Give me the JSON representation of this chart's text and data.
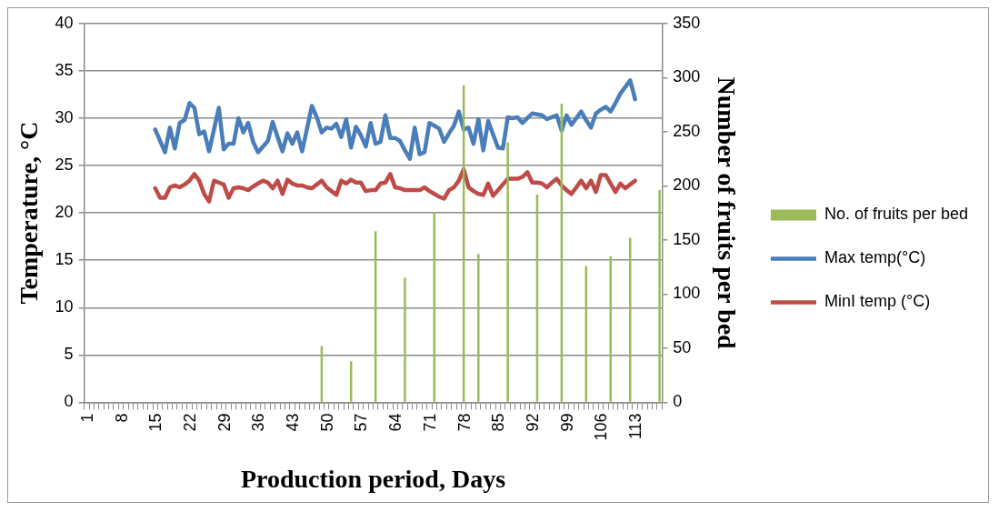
{
  "chart_data": {
    "type": "line",
    "xlabel": "Production period, Days",
    "ylabel": "Temperature, °C",
    "y2label": "Number of fruits per bed",
    "categories": [
      "1",
      null,
      null,
      null,
      null,
      null,
      null,
      "8",
      null,
      null,
      null,
      null,
      null,
      null,
      "15",
      null,
      null,
      null,
      null,
      null,
      null,
      "22",
      null,
      null,
      null,
      null,
      null,
      null,
      "29",
      null,
      null,
      null,
      null,
      null,
      null,
      "36",
      null,
      null,
      null,
      null,
      null,
      null,
      "43",
      null,
      null,
      null,
      null,
      null,
      null,
      "50",
      null,
      null,
      null,
      null,
      null,
      null,
      "57",
      null,
      null,
      null,
      null,
      null,
      null,
      "64",
      null,
      null,
      null,
      null,
      null,
      null,
      "71",
      null,
      null,
      null,
      null,
      null,
      null,
      "78",
      null,
      null,
      null,
      null,
      null,
      null,
      "85",
      null,
      null,
      null,
      null,
      null,
      null,
      "92",
      null,
      null,
      null,
      null,
      null,
      null,
      "99",
      null,
      null,
      null,
      null,
      null,
      null,
      "106",
      null,
      null,
      null,
      null,
      null,
      null,
      "113",
      null,
      null,
      null,
      null,
      null
    ],
    "series": [
      {
        "name": "No. of fruits per bed",
        "type": "bar",
        "axis": "y2",
        "color": "#9bbb59",
        "values": [
          null,
          null,
          null,
          null,
          null,
          null,
          null,
          null,
          null,
          null,
          null,
          null,
          null,
          null,
          null,
          null,
          null,
          null,
          null,
          null,
          null,
          null,
          null,
          null,
          null,
          null,
          null,
          null,
          null,
          null,
          null,
          null,
          null,
          null,
          null,
          null,
          null,
          null,
          null,
          null,
          null,
          null,
          null,
          null,
          null,
          null,
          null,
          null,
          52,
          null,
          null,
          null,
          null,
          null,
          38,
          null,
          null,
          null,
          null,
          158,
          null,
          null,
          null,
          null,
          null,
          115,
          null,
          null,
          null,
          null,
          null,
          176,
          null,
          null,
          null,
          null,
          null,
          293,
          null,
          null,
          137,
          null,
          null,
          null,
          null,
          null,
          240,
          null,
          null,
          null,
          null,
          null,
          192,
          null,
          null,
          null,
          null,
          276,
          null,
          null,
          null,
          null,
          126,
          null,
          null,
          null,
          null,
          135,
          null,
          null,
          null,
          152,
          null,
          null,
          null,
          null,
          null,
          196
        ]
      },
      {
        "name": "Max temp(°C)",
        "color": "#4a7ebb",
        "values": [
          null,
          null,
          null,
          null,
          null,
          null,
          null,
          null,
          null,
          null,
          null,
          null,
          null,
          null,
          28.8,
          27.6,
          26.4,
          29.0,
          26.8,
          29.5,
          29.8,
          31.6,
          31.1,
          28.3,
          28.6,
          26.5,
          28.8,
          31.1,
          26.7,
          27.3,
          27.3,
          30.0,
          28.5,
          29.5,
          27.5,
          26.4,
          27.0,
          27.6,
          29.6,
          28.0,
          26.5,
          28.4,
          27.3,
          28.5,
          26.5,
          28.9,
          31.3,
          30.1,
          28.5,
          29.0,
          28.9,
          29.4,
          28.0,
          29.9,
          26.9,
          29.1,
          28.2,
          27.0,
          29.5,
          27.3,
          27.5,
          30.3,
          27.9,
          27.9,
          27.6,
          26.6,
          25.7,
          29.0,
          26.2,
          26.4,
          29.5,
          29.2,
          28.9,
          27.5,
          28.4,
          29.2,
          30.7,
          28.8,
          29.0,
          27.3,
          29.9,
          26.6,
          29.7,
          28.3,
          26.9,
          26.8,
          30.1,
          30.0,
          30.1,
          29.5,
          30.0,
          30.5,
          30.4,
          30.3,
          29.9,
          30.1,
          30.3,
          28.7,
          30.3,
          29.3,
          30.0,
          30.7,
          29.8,
          29.0,
          30.5,
          30.9,
          31.2,
          30.7,
          31.6,
          32.6,
          33.3,
          34.0,
          32.0,
          null,
          null,
          null,
          null,
          null
        ]
      },
      {
        "name": "MinI temp (°C)",
        "color": "#be4b48",
        "values": [
          null,
          null,
          null,
          null,
          null,
          null,
          null,
          null,
          null,
          null,
          null,
          null,
          null,
          null,
          22.6,
          21.6,
          21.6,
          22.7,
          22.9,
          22.7,
          23.0,
          23.4,
          24.1,
          23.4,
          22.0,
          21.2,
          23.4,
          23.2,
          23.0,
          21.6,
          22.6,
          22.7,
          22.6,
          22.4,
          22.8,
          23.1,
          23.4,
          23.2,
          22.6,
          23.4,
          22.0,
          23.5,
          23.1,
          22.9,
          22.9,
          22.7,
          22.6,
          23.0,
          23.4,
          22.7,
          22.3,
          21.9,
          23.4,
          23.1,
          23.5,
          23.2,
          23.2,
          22.3,
          22.4,
          22.4,
          23.1,
          23.2,
          24.1,
          22.7,
          22.6,
          22.4,
          22.4,
          22.4,
          22.4,
          22.7,
          22.3,
          22.0,
          21.7,
          21.5,
          22.4,
          22.7,
          23.4,
          24.6,
          22.7,
          22.3,
          22.0,
          21.9,
          23.1,
          21.8,
          22.4,
          23.0,
          23.6,
          23.6,
          23.6,
          23.8,
          24.3,
          23.2,
          23.2,
          23.1,
          22.7,
          23.2,
          23.6,
          22.9,
          22.4,
          22.0,
          22.7,
          23.4,
          22.6,
          23.4,
          22.2,
          24.0,
          24.0,
          23.1,
          22.2,
          23.1,
          22.6,
          23.0,
          23.4,
          null,
          null,
          null,
          null,
          null
        ]
      }
    ],
    "ylim": [
      0,
      40
    ],
    "yticks": [
      0,
      5,
      10,
      15,
      20,
      25,
      30,
      35,
      40
    ],
    "y2lim": [
      0,
      350
    ],
    "y2ticks": [
      0,
      50,
      100,
      150,
      200,
      250,
      300,
      350
    ],
    "grid": "y",
    "legend": "right"
  }
}
